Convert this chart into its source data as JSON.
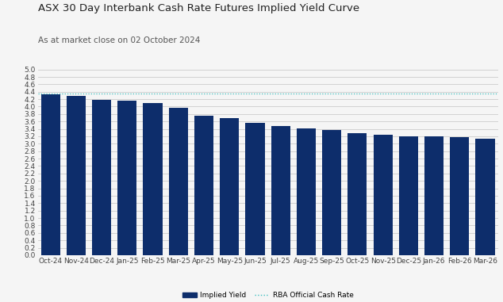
{
  "title": "ASX 30 Day Interbank Cash Rate Futures Implied Yield Curve",
  "subtitle": "As at market close on 02 October 2024",
  "categories": [
    "Oct-24",
    "Nov-24",
    "Dec-24",
    "Jan-25",
    "Feb-25",
    "Mar-25",
    "Apr-25",
    "May-25",
    "Jun-25",
    "Jul-25",
    "Aug-25",
    "Sep-25",
    "Oct-25",
    "Nov-25",
    "Dec-25",
    "Jan-26",
    "Feb-26",
    "Mar-26"
  ],
  "values": [
    4.33,
    4.29,
    4.19,
    4.17,
    4.09,
    3.97,
    3.76,
    3.68,
    3.57,
    3.48,
    3.42,
    3.38,
    3.29,
    3.25,
    3.21,
    3.2,
    3.17,
    3.14
  ],
  "rba_cash_rate": 4.35,
  "bar_color": "#0d2d6b",
  "rba_line_color": "#3dbfbf",
  "plot_bg_color": "#f5f5f5",
  "fig_bg_color": "#f5f5f5",
  "ylim": [
    0.0,
    5.0
  ],
  "yticks": [
    0.0,
    0.2,
    0.4,
    0.6,
    0.8,
    1.0,
    1.2,
    1.4,
    1.6,
    1.8,
    2.0,
    2.2,
    2.4,
    2.6,
    2.8,
    3.0,
    3.2,
    3.4,
    3.6,
    3.8,
    4.0,
    4.2,
    4.4,
    4.6,
    4.8,
    5.0
  ],
  "title_fontsize": 9.5,
  "subtitle_fontsize": 7.5,
  "tick_fontsize": 6.5,
  "legend_label_yield": "Implied Yield",
  "legend_label_rba": "RBA Official Cash Rate"
}
